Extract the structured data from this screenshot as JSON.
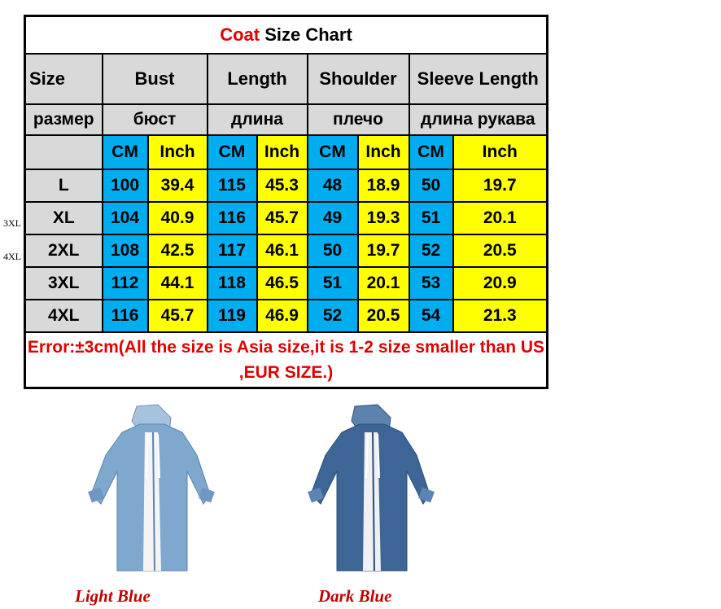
{
  "title": {
    "highlight": "Coat",
    "rest": " Size Chart"
  },
  "headers": [
    "Size",
    "Bust",
    "Length",
    "Shoulder",
    "Sleeve Length"
  ],
  "headers_ru": [
    "размер",
    "бюст",
    "длина",
    "плечо",
    "длина рукава"
  ],
  "units": [
    "CM",
    "Inch",
    "CM",
    "Inch",
    "CM",
    "Inch",
    "CM",
    "Inch"
  ],
  "rows": [
    {
      "size": "L",
      "values": [
        "100",
        "39.4",
        "115",
        "45.3",
        "48",
        "18.9",
        "50",
        "19.7"
      ]
    },
    {
      "size": "XL",
      "values": [
        "104",
        "40.9",
        "116",
        "45.7",
        "49",
        "19.3",
        "51",
        "20.1"
      ]
    },
    {
      "size": "2XL",
      "values": [
        "108",
        "42.5",
        "117",
        "46.1",
        "50",
        "19.7",
        "52",
        "20.5"
      ]
    },
    {
      "size": "3XL",
      "values": [
        "112",
        "44.1",
        "118",
        "46.5",
        "51",
        "20.1",
        "53",
        "20.9"
      ]
    },
    {
      "size": "4XL",
      "values": [
        "116",
        "45.7",
        "119",
        "46.9",
        "52",
        "20.5",
        "54",
        "21.3"
      ]
    }
  ],
  "error_note": "Error:±3cm(All the size is Asia size,it is 1-2 size smaller than US ,EUR SIZE.)",
  "side_labels": [
    "3XL",
    "4XL"
  ],
  "products": [
    {
      "name": "Light Blue",
      "color": "#7fa8cf"
    },
    {
      "name": "Dark Blue",
      "color": "#3d6696"
    }
  ],
  "colors": {
    "cm": "#00aeef",
    "inch": "#ffff00",
    "header": "#d9d9d9",
    "accent": "#e00000"
  }
}
